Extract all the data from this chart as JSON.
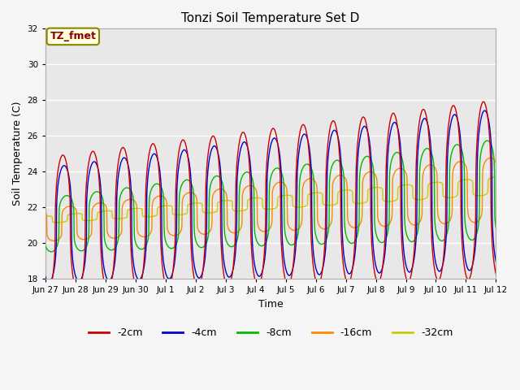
{
  "title": "Tonzi Soil Temperature Set D",
  "xlabel": "Time",
  "ylabel": "Soil Temperature (C)",
  "ylim": [
    18,
    32
  ],
  "yticks": [
    18,
    20,
    22,
    24,
    26,
    28,
    30,
    32
  ],
  "xtick_labels": [
    "Jun 27",
    "Jun 28",
    "Jun 29",
    "Jun 30",
    "Jul 1",
    "Jul 2",
    "Jul 3",
    "Jul 4",
    "Jul 5",
    "Jul 6",
    "Jul 7",
    "Jul 8",
    "Jul 9",
    "Jul 10",
    "Jul 11",
    "Jul 12"
  ],
  "colors": {
    "-2cm": "#cc0000",
    "-4cm": "#0000cc",
    "-8cm": "#00bb00",
    "-16cm": "#ff8800",
    "-32cm": "#cccc00"
  },
  "legend_label": "TZ_fmet",
  "fig_facecolor": "#f5f5f5",
  "ax_facecolor": "#e8e8e8",
  "n_days": 16,
  "pts_per_day": 96
}
